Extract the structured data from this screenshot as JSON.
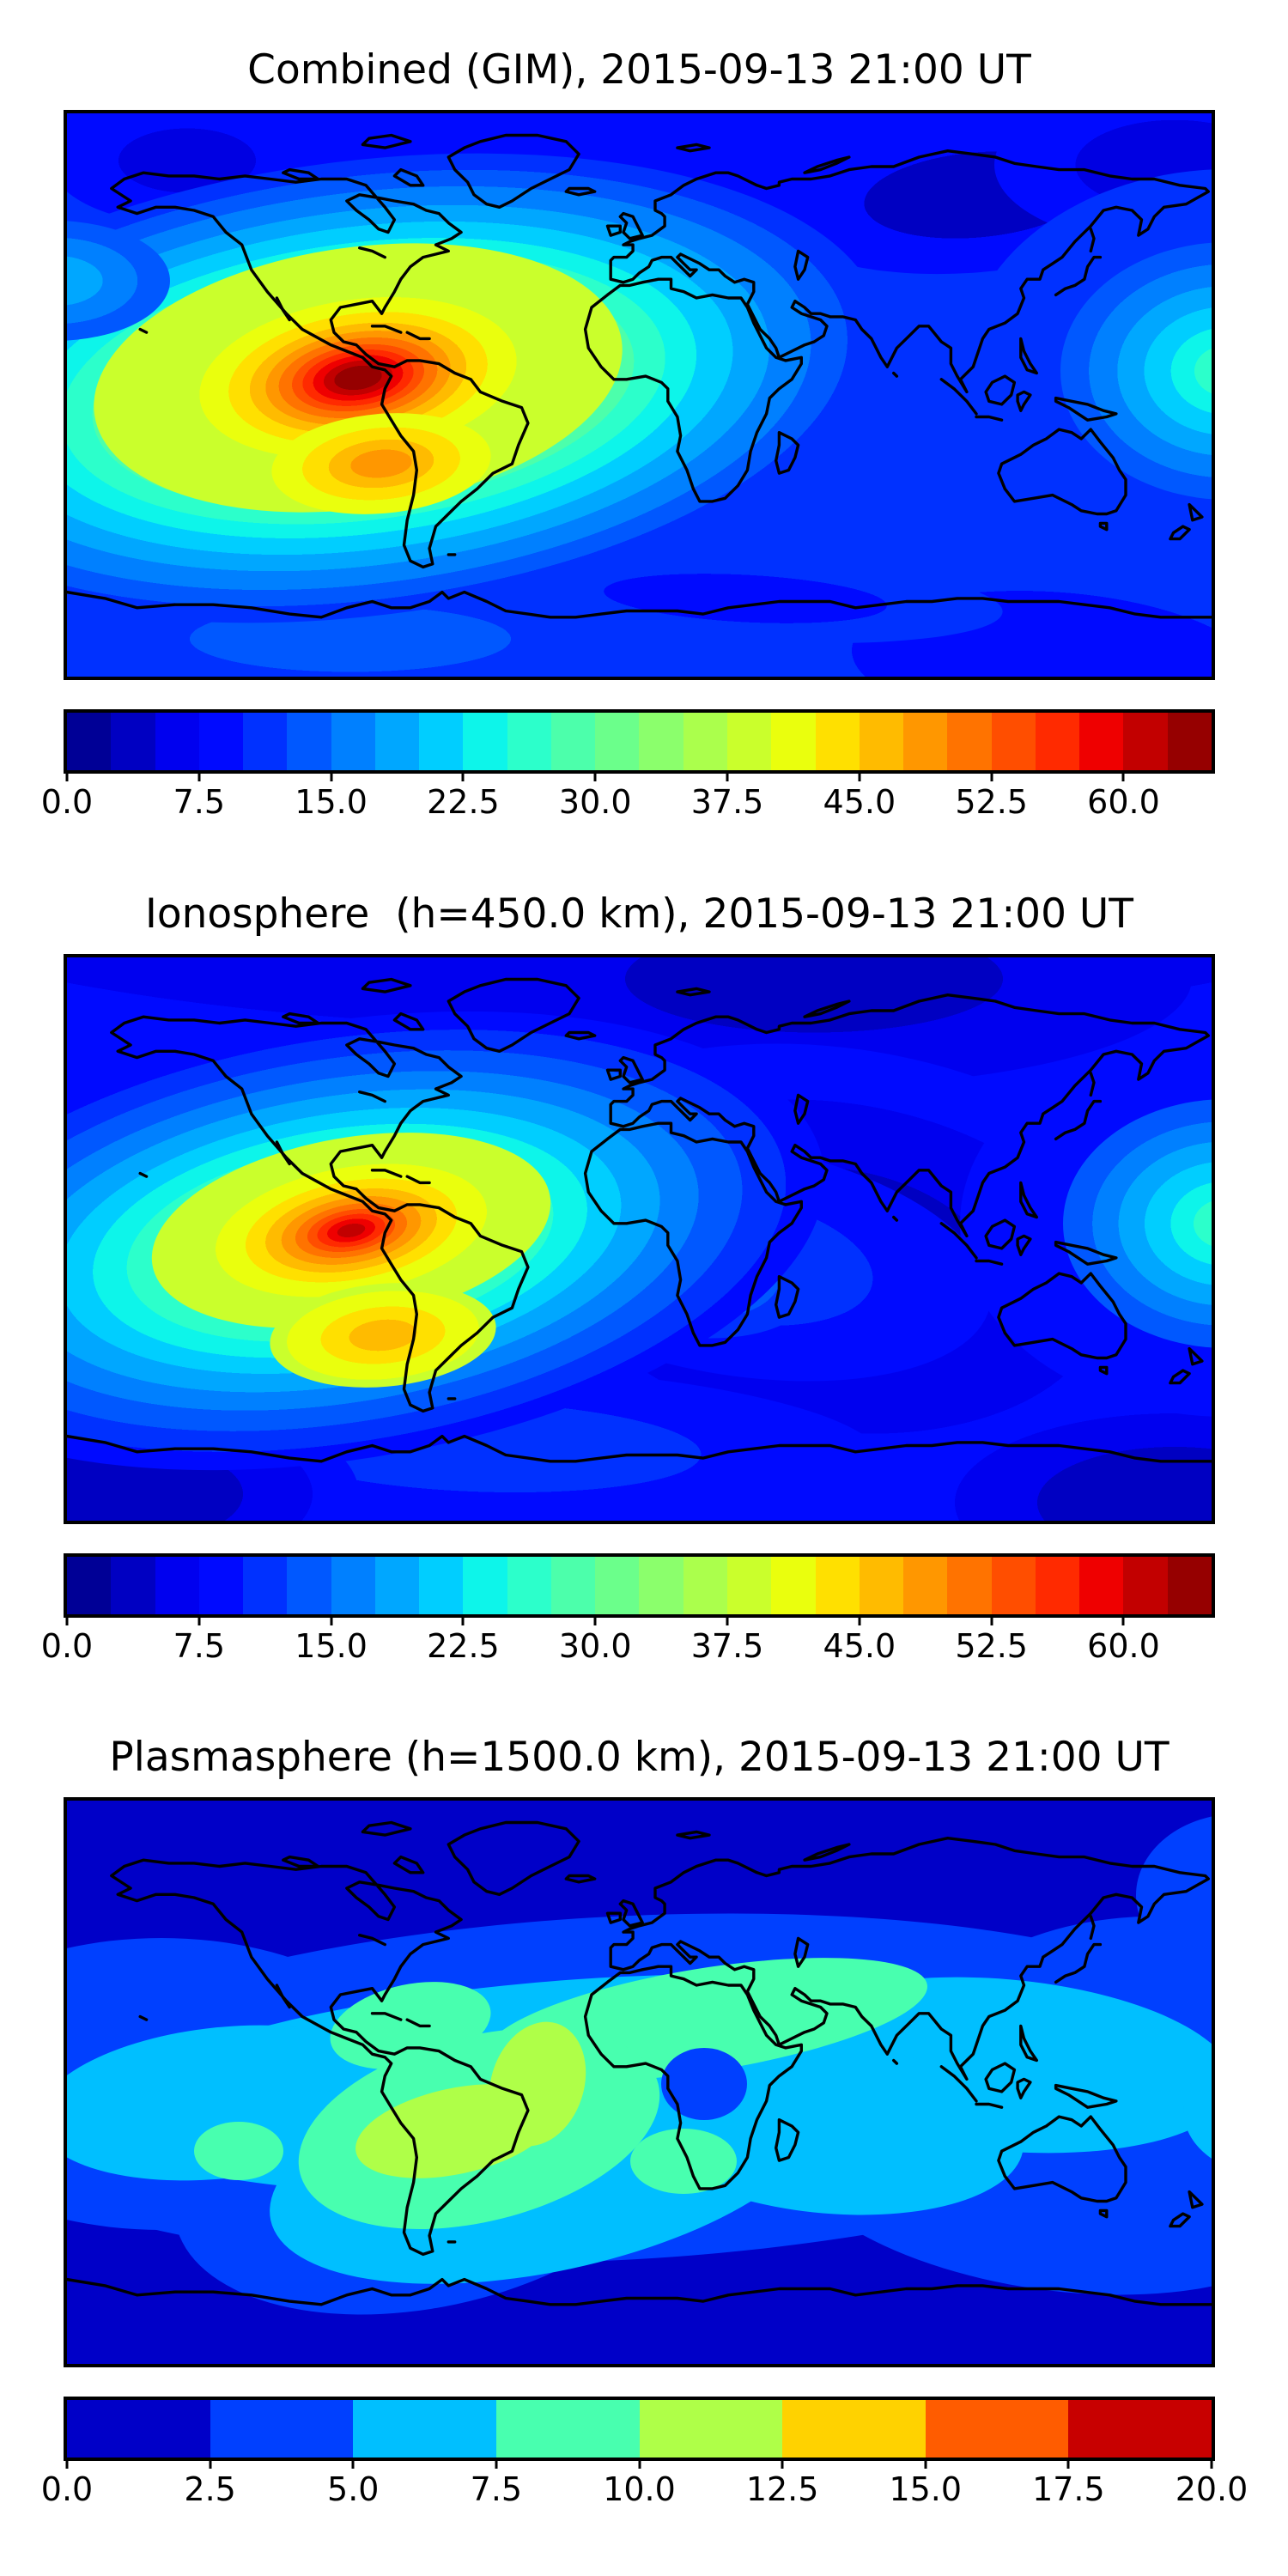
{
  "figure": {
    "background": "#ffffff",
    "coastline_color": "#000000",
    "colormap": "jet"
  },
  "panels": [
    {
      "id": "combined",
      "title": "Combined (GIM), 2015-09-13 21:00 UT",
      "colorbar": {
        "vmin": 0,
        "vmax": 65,
        "tick_labels": [
          "0.0",
          "7.5",
          "15.0",
          "22.5",
          "30.0",
          "37.5",
          "45.0",
          "52.5",
          "60.0"
        ],
        "tick_values": [
          0,
          7.5,
          15,
          22.5,
          30,
          37.5,
          45,
          52.5,
          60
        ],
        "segments": [
          "#000096",
          "#0000c2",
          "#0000ef",
          "#000aff",
          "#0031ff",
          "#0058ff",
          "#0080ff",
          "#00a7ff",
          "#00ceff",
          "#0df5ea",
          "#2cffcb",
          "#4cffab",
          "#6bff8b",
          "#8bff6c",
          "#abff4c",
          "#caff2c",
          "#eaff0d",
          "#ffe000",
          "#ffbb00",
          "#ff9700",
          "#ff7300",
          "#ff4e00",
          "#ff2a00",
          "#ef0000",
          "#c20000",
          "#960000"
        ]
      }
    },
    {
      "id": "ionosphere",
      "title": "Ionosphere  (h=450.0 km), 2015-09-13 21:00 UT",
      "colorbar": {
        "vmin": 0,
        "vmax": 65,
        "tick_labels": [
          "0.0",
          "7.5",
          "15.0",
          "22.5",
          "30.0",
          "37.5",
          "45.0",
          "52.5",
          "60.0"
        ],
        "tick_values": [
          0,
          7.5,
          15,
          22.5,
          30,
          37.5,
          45,
          52.5,
          60
        ],
        "segments": [
          "#000096",
          "#0000c2",
          "#0000ef",
          "#000aff",
          "#0031ff",
          "#0058ff",
          "#0080ff",
          "#00a7ff",
          "#00ceff",
          "#0df5ea",
          "#2cffcb",
          "#4cffab",
          "#6bff8b",
          "#8bff6c",
          "#abff4c",
          "#caff2c",
          "#eaff0d",
          "#ffe000",
          "#ffbb00",
          "#ff9700",
          "#ff7300",
          "#ff4e00",
          "#ff2a00",
          "#ef0000",
          "#c20000",
          "#960000"
        ]
      }
    },
    {
      "id": "plasmasphere",
      "title": "Plasmasphere (h=1500.0 km), 2015-09-13 21:00 UT",
      "colorbar": {
        "vmin": 0,
        "vmax": 20,
        "tick_labels": [
          "0.0",
          "2.5",
          "5.0",
          "7.5",
          "10.0",
          "12.5",
          "15.0",
          "17.5",
          "20.0"
        ],
        "tick_values": [
          0,
          2.5,
          5,
          7.5,
          10,
          12.5,
          15,
          17.5,
          20
        ],
        "segments": [
          "#0000c8",
          "#0040ff",
          "#00bfff",
          "#48ffaf",
          "#afff48",
          "#ffd200",
          "#ff5c00",
          "#c80000"
        ]
      }
    }
  ],
  "chart_data": [
    {
      "type": "heatmap",
      "title": "Combined (GIM), 2015-09-13 21:00 UT",
      "colormap": "jet",
      "contour_levels": {
        "min": 0,
        "max": 65,
        "step": 2.5
      },
      "colorbar_ticks": [
        0,
        7.5,
        15,
        22.5,
        30,
        37.5,
        45,
        52.5,
        60
      ],
      "extent": {
        "lon": [
          -180,
          180
        ],
        "lat": [
          -90,
          90
        ]
      },
      "grid": {
        "lons": [
          -180,
          -135,
          -90,
          -45,
          0,
          45,
          90,
          135,
          180
        ],
        "lats": [
          60,
          30,
          0,
          -30,
          -60
        ],
        "values": [
          [
            8,
            8,
            6,
            5,
            5,
            5,
            6,
            7,
            8
          ],
          [
            17,
            20,
            22,
            15,
            10,
            8,
            8,
            10,
            14
          ],
          [
            25,
            38,
            55,
            30,
            15,
            10,
            10,
            15,
            25
          ],
          [
            20,
            28,
            35,
            18,
            12,
            10,
            10,
            12,
            18
          ],
          [
            10,
            11,
            12,
            10,
            8,
            8,
            8,
            8,
            10
          ]
        ]
      },
      "hotspot_max": {
        "lon": -87,
        "lat": 4,
        "value": 64
      },
      "secondary_peak": {
        "lon": -81,
        "lat": -21,
        "value": 52
      }
    },
    {
      "type": "heatmap",
      "title": "Ionosphere  (h=450.0 km), 2015-09-13 21:00 UT",
      "colormap": "jet",
      "contour_levels": {
        "min": 0,
        "max": 65,
        "step": 2.5
      },
      "colorbar_ticks": [
        0,
        7.5,
        15,
        22.5,
        30,
        37.5,
        45,
        52.5,
        60
      ],
      "extent": {
        "lon": [
          -180,
          180
        ],
        "lat": [
          -90,
          90
        ]
      },
      "grid": {
        "lons": [
          -180,
          -135,
          -90,
          -45,
          0,
          45,
          90,
          135,
          180
        ],
        "lats": [
          60,
          30,
          0,
          -30,
          -60
        ],
        "values": [
          [
            6,
            6,
            5,
            4,
            3,
            3,
            4,
            5,
            6
          ],
          [
            14,
            17,
            19,
            12,
            7,
            5,
            5,
            7,
            11
          ],
          [
            22,
            34,
            50,
            26,
            11,
            6,
            7,
            12,
            22
          ],
          [
            16,
            24,
            30,
            14,
            8,
            6,
            6,
            9,
            14
          ],
          [
            8,
            9,
            10,
            8,
            5,
            5,
            5,
            6,
            8
          ]
        ]
      },
      "hotspot_max": {
        "lon": -90,
        "lat": 4,
        "value": 60
      },
      "secondary_peak": {
        "lon": -80,
        "lat": -30,
        "value": 46
      }
    },
    {
      "type": "heatmap",
      "title": "Plasmasphere (h=1500.0 km), 2015-09-13 21:00 UT",
      "colormap": "jet",
      "contour_levels": {
        "min": 0,
        "max": 20,
        "step": 2.5
      },
      "colorbar_ticks": [
        0,
        2.5,
        5,
        7.5,
        10,
        12.5,
        15,
        17.5,
        20
      ],
      "extent": {
        "lon": [
          -180,
          180
        ],
        "lat": [
          -90,
          90
        ]
      },
      "grid": {
        "lons": [
          -180,
          -135,
          -90,
          -45,
          0,
          45,
          90,
          135,
          180
        ],
        "lats": [
          60,
          30,
          0,
          -30,
          -60
        ],
        "values": [
          [
            1,
            1,
            1,
            1,
            2,
            2,
            2,
            2,
            1
          ],
          [
            3,
            3,
            4,
            4,
            5,
            6,
            6,
            5,
            4
          ],
          [
            5,
            6,
            7,
            9,
            8,
            7,
            6,
            6,
            5
          ],
          [
            3,
            5,
            9,
            11,
            6,
            5,
            4,
            3,
            3
          ],
          [
            1,
            2,
            3,
            3,
            2,
            1,
            1,
            1,
            1
          ]
        ]
      },
      "hotspot_max": {
        "lon": -50,
        "lat": -15,
        "value": 12
      }
    }
  ]
}
